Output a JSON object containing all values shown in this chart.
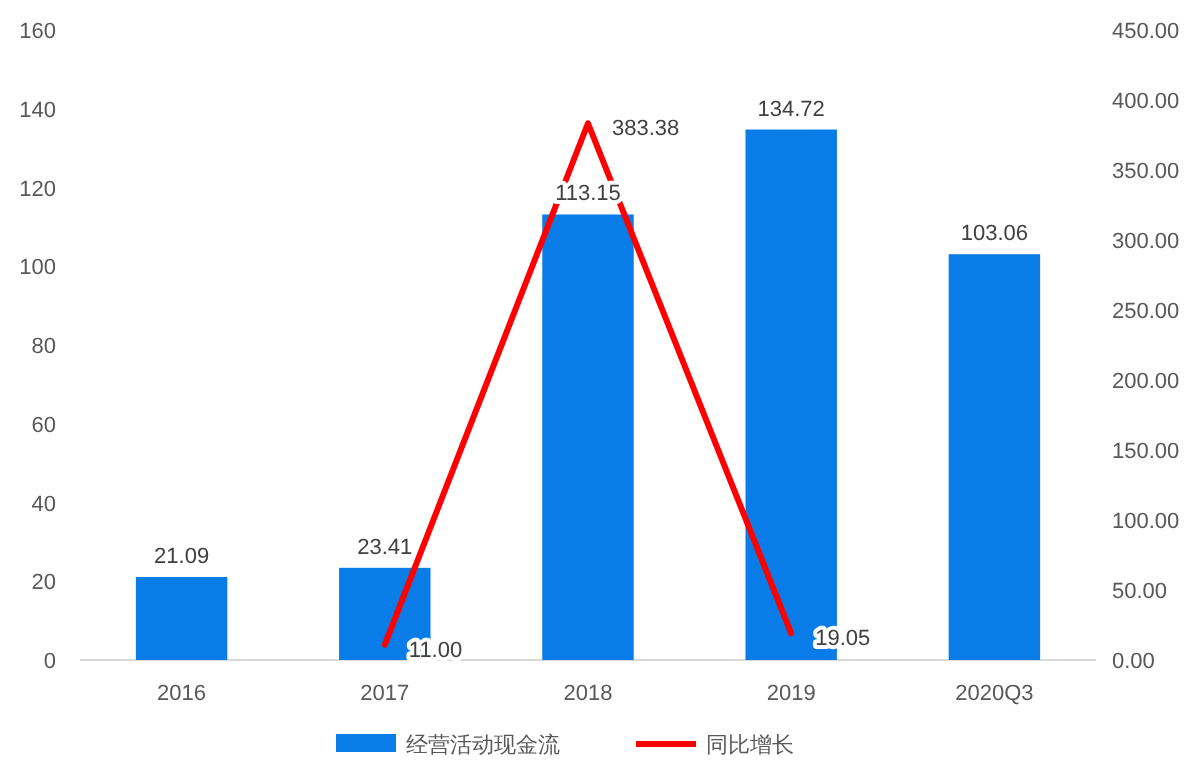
{
  "chart_data": {
    "type": "bar",
    "categories": [
      "2016",
      "2017",
      "2018",
      "2019",
      "2020Q3"
    ],
    "series": [
      {
        "name": "经营活动现金流",
        "color": "#0a7ce8",
        "values": [
          21.09,
          23.41,
          113.15,
          134.72,
          103.06
        ],
        "value_labels": [
          "21.09",
          "23.41",
          "113.15",
          "134.72",
          "103.06"
        ]
      },
      {
        "name": "同比增长",
        "type": "line",
        "axis": "y2",
        "color": "#ff0000",
        "values": [
          null,
          11.0,
          383.38,
          19.05,
          null
        ],
        "value_labels": [
          null,
          "11.00",
          "383.38",
          "19.05",
          null
        ]
      }
    ],
    "ylim": [
      0,
      160
    ],
    "yticks": [
      0,
      20,
      40,
      60,
      80,
      100,
      120,
      140,
      160
    ],
    "y2lim": [
      0,
      450
    ],
    "y2ticks": [
      {
        "value": 0,
        "label": "0.00"
      },
      {
        "value": 50,
        "label": "50.00"
      },
      {
        "value": 100,
        "label": "100.00"
      },
      {
        "value": 150,
        "label": "150.00"
      },
      {
        "value": 200,
        "label": "200.00"
      },
      {
        "value": 250,
        "label": "250.00"
      },
      {
        "value": 300,
        "label": "300.00"
      },
      {
        "value": 350,
        "label": "350.00"
      },
      {
        "value": 400,
        "label": "400.00"
      },
      {
        "value": 450,
        "label": "450.00"
      }
    ],
    "legend": "bottom",
    "line_style": "solid",
    "marker": "none"
  }
}
